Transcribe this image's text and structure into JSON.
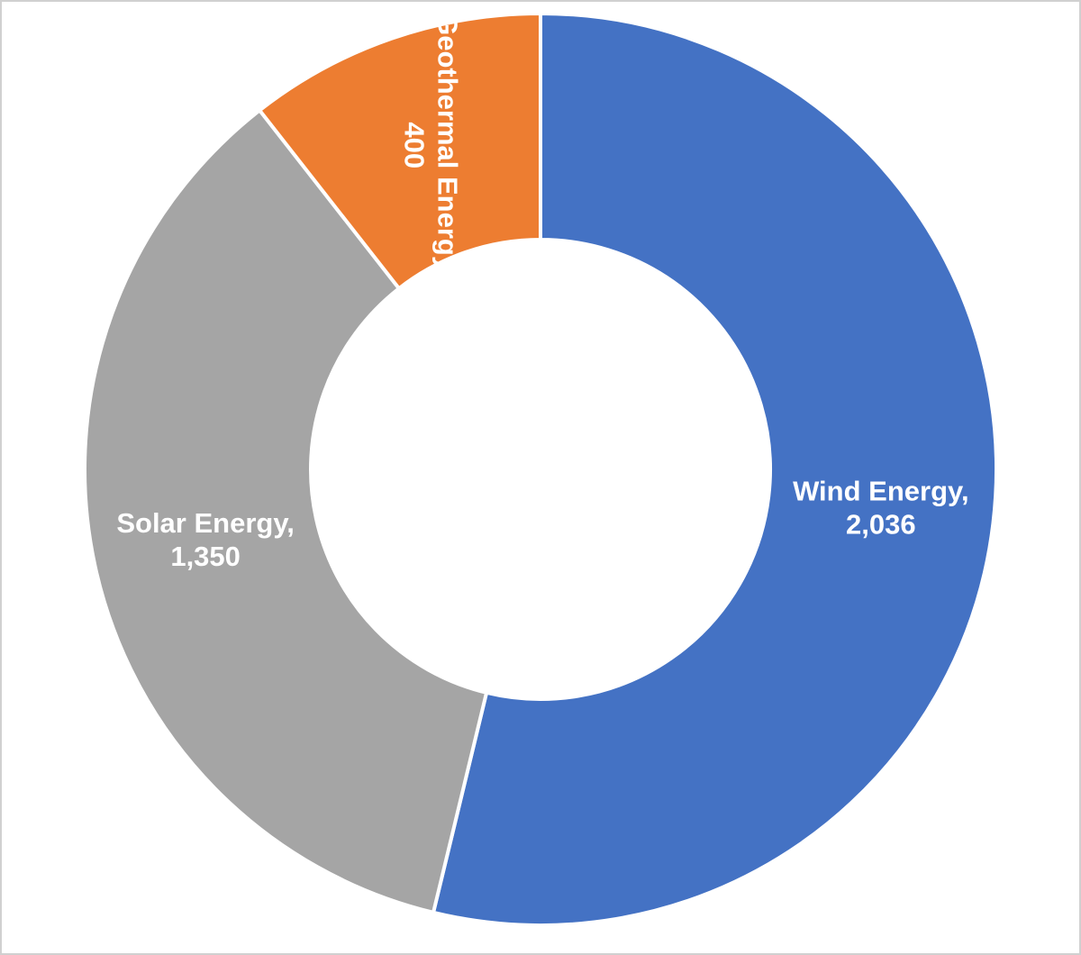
{
  "chart_data": {
    "type": "donut",
    "categories": [
      "Wind Energy",
      "Solar Energy",
      "Geothermal Energy"
    ],
    "values": [
      2036,
      1350,
      400
    ],
    "value_labels": [
      "2,036",
      "1,350",
      "400"
    ],
    "label_separator": ",",
    "colors": [
      "#4472c4",
      "#a5a5a5",
      "#ed7d31"
    ]
  }
}
